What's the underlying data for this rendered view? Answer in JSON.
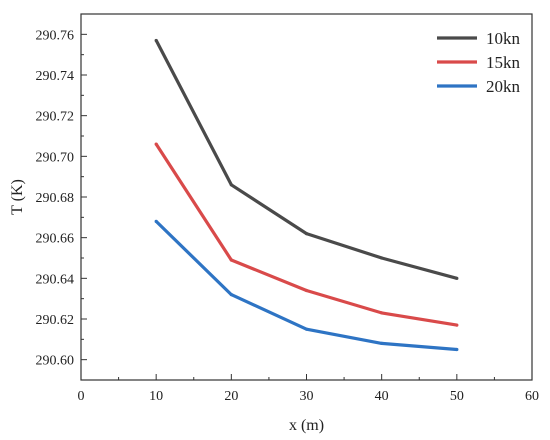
{
  "chart_data": {
    "type": "line",
    "xlabel": "x (m)",
    "ylabel": "T (K)",
    "xlim": [
      0,
      60
    ],
    "ylim": [
      290.59,
      290.77
    ],
    "x_ticks": [
      0,
      10,
      20,
      30,
      40,
      50,
      60
    ],
    "y_ticks": [
      290.6,
      290.62,
      290.64,
      290.66,
      290.68,
      290.7,
      290.72,
      290.74,
      290.76
    ],
    "y_tick_labels": [
      "290.60",
      "290.62",
      "290.64",
      "290.66",
      "290.68",
      "290.70",
      "290.72",
      "290.74",
      "290.76"
    ],
    "grid": false,
    "legend_position": "top-right",
    "x": [
      10,
      20,
      30,
      40,
      50
    ],
    "series": [
      {
        "name": "10kn",
        "color": "#4a4a4a",
        "values": [
          290.757,
          290.686,
          290.662,
          290.65,
          290.64
        ]
      },
      {
        "name": "15kn",
        "color": "#d94a4a",
        "values": [
          290.706,
          290.649,
          290.634,
          290.623,
          290.617
        ]
      },
      {
        "name": "20kn",
        "color": "#2e74c4",
        "values": [
          290.668,
          290.632,
          290.615,
          290.608,
          290.605
        ]
      }
    ]
  }
}
